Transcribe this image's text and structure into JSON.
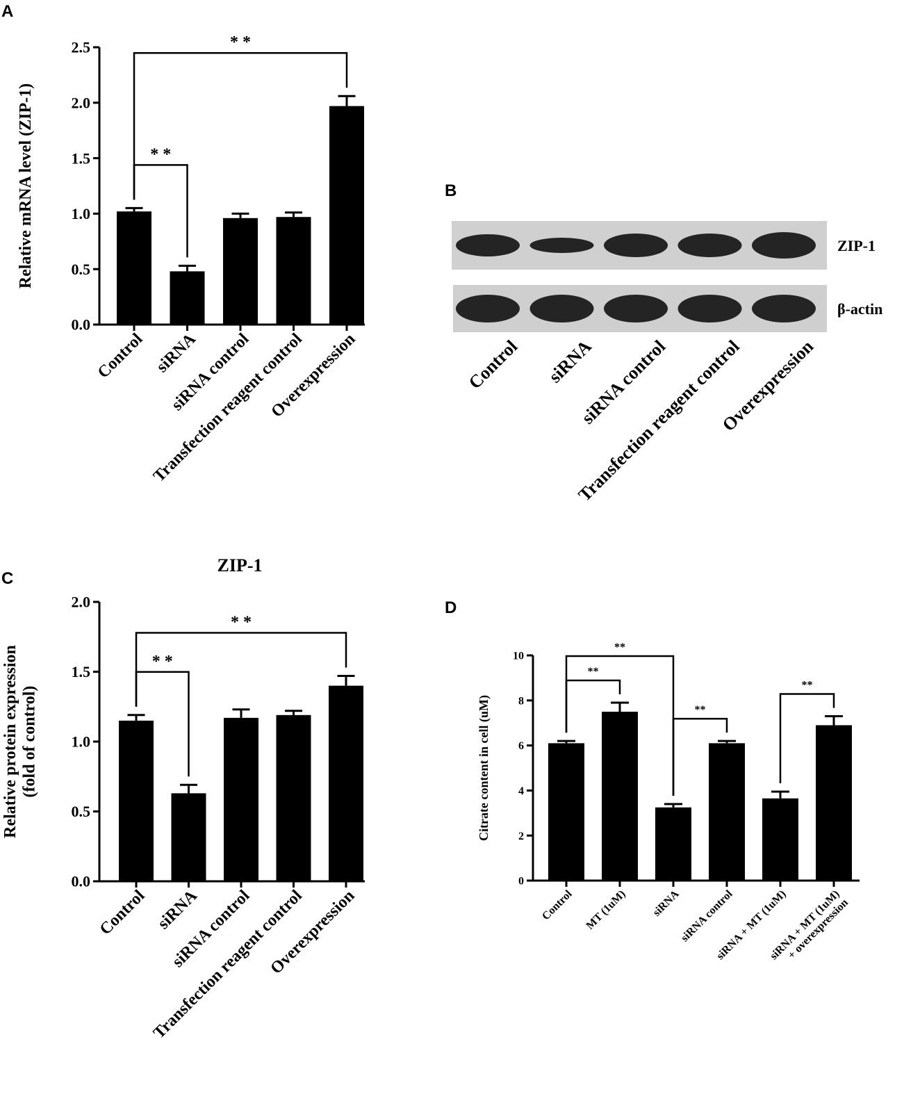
{
  "chart_data": [
    {
      "type": "bar",
      "panel": "A",
      "ylabel": [
        "Relative mRNA level (ZIP-1)"
      ],
      "color": "#000000",
      "categories": [
        "Control",
        "siRNA",
        "siRNA control",
        "Transfection reagent control",
        "Overexpression"
      ],
      "values": [
        1.02,
        0.48,
        0.96,
        0.97,
        1.97
      ],
      "errors": [
        0.03,
        0.05,
        0.04,
        0.04,
        0.09
      ],
      "ylim": [
        0,
        2.5
      ],
      "yticks": [
        {
          "value": 0,
          "label": "0.0"
        },
        0.5,
        {
          "value": 1,
          "label": "1.0"
        },
        1.5,
        {
          "value": 2,
          "label": "2.0"
        },
        2.5
      ],
      "brackets": [
        {
          "label": "* *",
          "between": [
            0,
            1
          ]
        },
        {
          "label": "* *",
          "between": [
            0,
            4
          ]
        }
      ]
    },
    {
      "type": "bar",
      "panel": "C",
      "title": "ZIP-1",
      "ylabel": [
        "Relative protein expression",
        "(fold of control)"
      ],
      "color": "#000000",
      "categories": [
        "Control",
        "siRNA",
        "siRNA control",
        "Transfection reagent control",
        "Overexpression"
      ],
      "values": [
        1.15,
        0.63,
        1.17,
        1.19,
        1.4
      ],
      "errors": [
        0.04,
        0.06,
        0.06,
        0.03,
        0.07
      ],
      "ylim": [
        0,
        2
      ],
      "yticks": [
        {
          "value": 0,
          "label": "0.0"
        },
        0.5,
        {
          "value": 1,
          "label": "1.0"
        },
        1.5,
        {
          "value": 2,
          "label": "2.0"
        }
      ],
      "brackets": [
        {
          "label": "* *",
          "between": [
            0,
            1
          ]
        },
        {
          "label": "* *",
          "between": [
            0,
            4
          ]
        }
      ]
    },
    {
      "type": "bar",
      "panel": "D",
      "ylabel": [
        "Citrate content in cell  (uM)"
      ],
      "color": "#000000",
      "categories": [
        "Control",
        "MT (1uM)",
        "siRNA",
        "siRNA control",
        "siRNA + MT (1uM)",
        [
          "siRNA + MT (1uM)",
          "+ overexpression"
        ]
      ],
      "values": [
        6.1,
        7.5,
        3.25,
        6.1,
        3.65,
        6.9
      ],
      "errors": [
        0.1,
        0.4,
        0.15,
        0.1,
        0.3,
        0.4
      ],
      "ylim": [
        0,
        10
      ],
      "yticks": [
        0,
        2,
        4,
        6,
        8,
        10
      ],
      "brackets": [
        {
          "label": "**",
          "between": [
            0,
            1
          ]
        },
        {
          "label": "**",
          "between": [
            0,
            2
          ]
        },
        {
          "label": "**",
          "between": [
            2,
            3
          ]
        },
        {
          "label": "**",
          "between": [
            4,
            5
          ]
        }
      ]
    }
  ],
  "blot": {
    "panel": "B",
    "rows": [
      "ZIP-1",
      "β-actin"
    ],
    "lanes": [
      "Control",
      "siRNA",
      "siRNA control",
      "Transfection reagent control",
      "Overexpression"
    ]
  }
}
